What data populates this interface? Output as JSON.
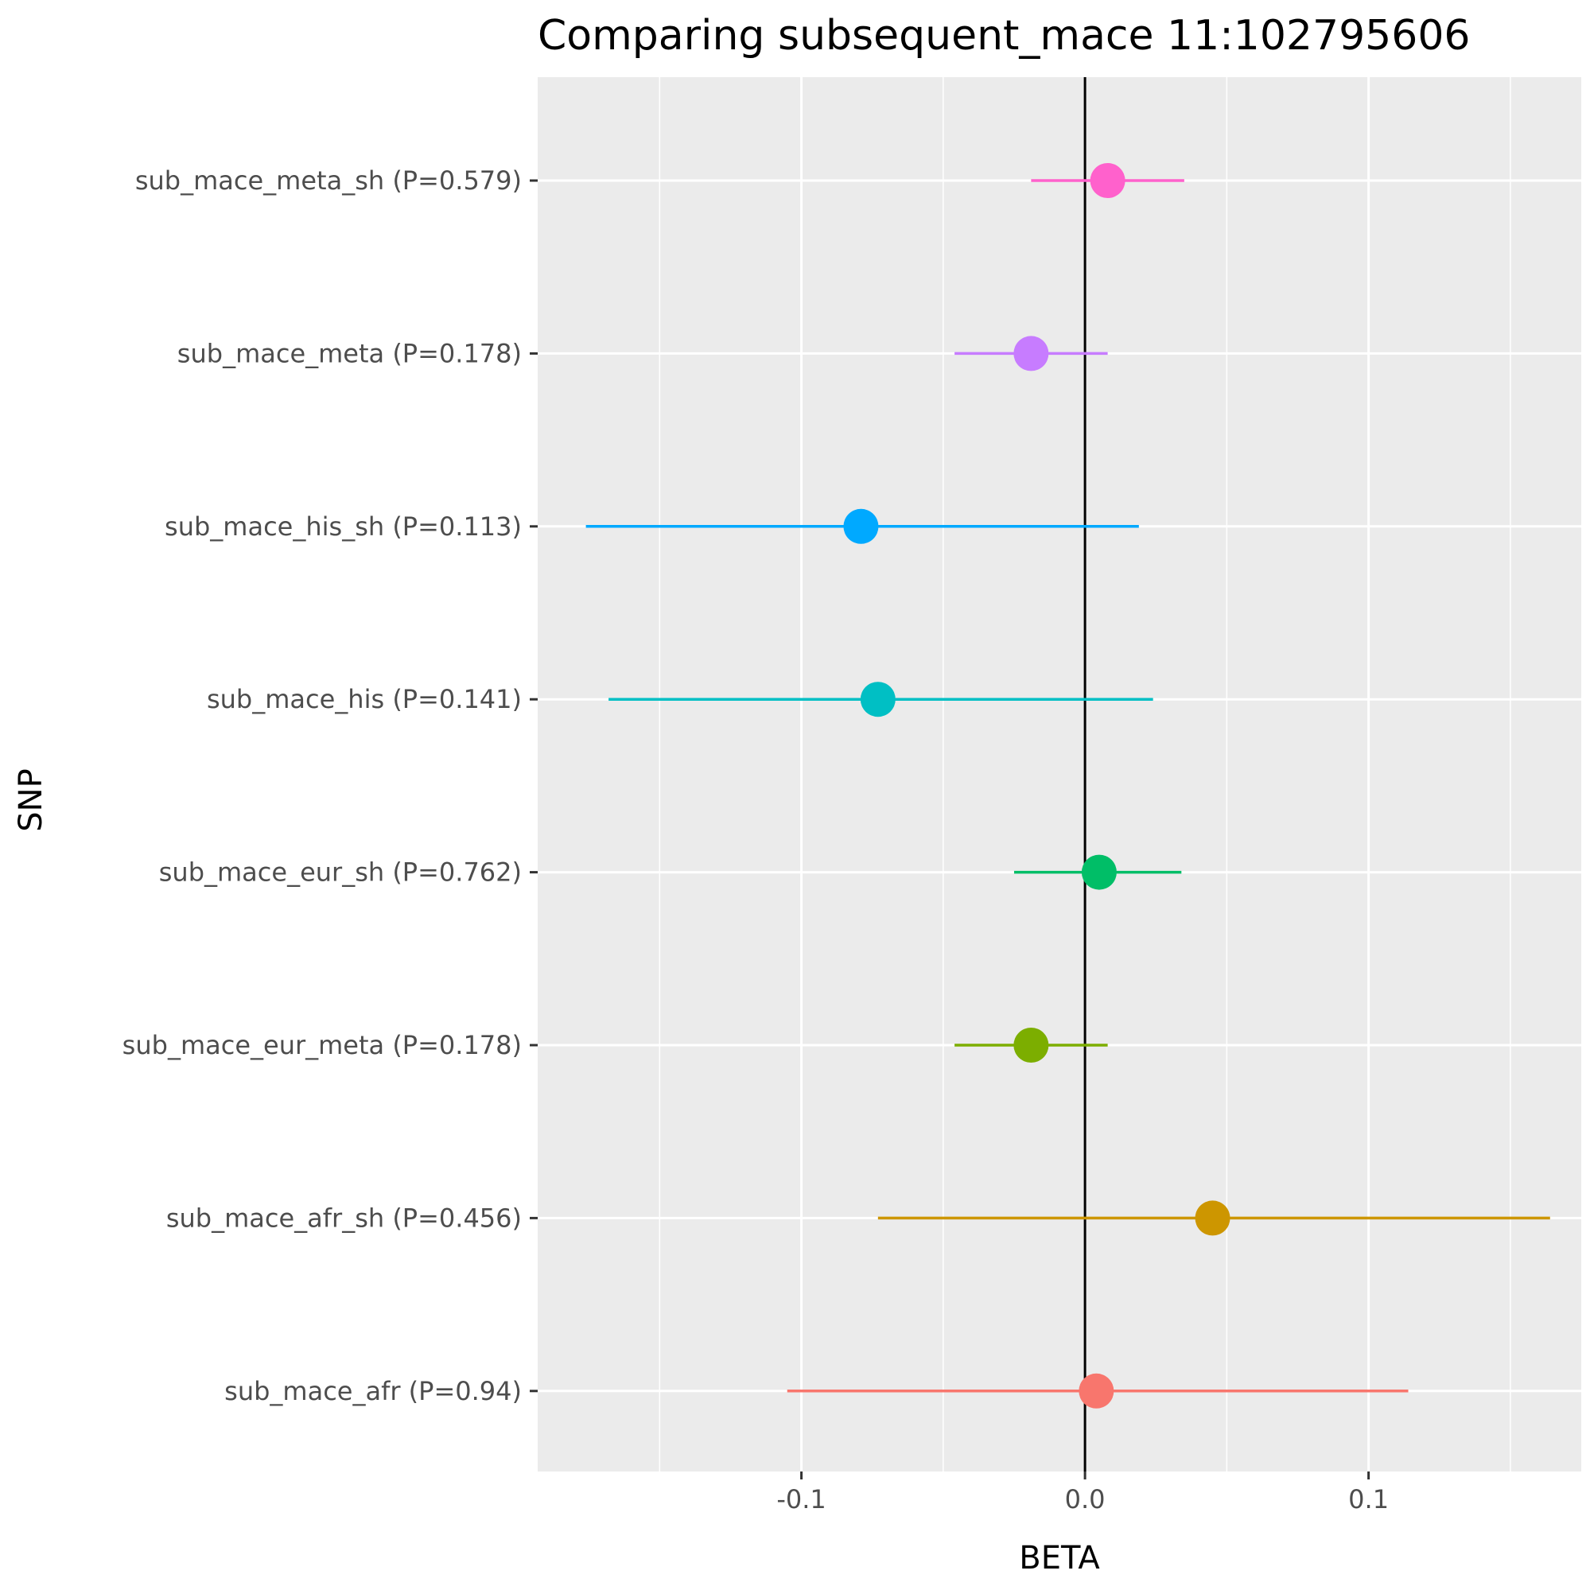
{
  "chart_data": {
    "type": "scatter",
    "subtype": "forest-plot",
    "title": "Comparing subsequent_mace 11:102795606",
    "xlabel": "BETA",
    "ylabel": "SNP",
    "xlim": [
      -0.193,
      0.175
    ],
    "x_ticks": [
      {
        "value": -0.1,
        "label": "-0.1"
      },
      {
        "value": 0.0,
        "label": "0.0"
      },
      {
        "value": 0.1,
        "label": "0.1"
      }
    ],
    "reference_line": 0,
    "grid": true,
    "legend": "none",
    "points": [
      {
        "label": "sub_mace_meta_sh (P=0.579)",
        "beta": 0.008,
        "lower": -0.019,
        "upper": 0.035,
        "color": "#FF61CC"
      },
      {
        "label": "sub_mace_meta (P=0.178)",
        "beta": -0.019,
        "lower": -0.046,
        "upper": 0.008,
        "color": "#C77CFF"
      },
      {
        "label": "sub_mace_his_sh (P=0.113)",
        "beta": -0.079,
        "lower": -0.176,
        "upper": 0.019,
        "color": "#00A9FF"
      },
      {
        "label": "sub_mace_his (P=0.141)",
        "beta": -0.073,
        "lower": -0.168,
        "upper": 0.024,
        "color": "#00BFC4"
      },
      {
        "label": "sub_mace_eur_sh (P=0.762)",
        "beta": 0.005,
        "lower": -0.025,
        "upper": 0.034,
        "color": "#00BE67"
      },
      {
        "label": "sub_mace_eur_meta (P=0.178)",
        "beta": -0.019,
        "lower": -0.046,
        "upper": 0.008,
        "color": "#7CAE00"
      },
      {
        "label": "sub_mace_afr_sh (P=0.456)",
        "beta": 0.045,
        "lower": -0.073,
        "upper": 0.164,
        "color": "#CD9600"
      },
      {
        "label": "sub_mace_afr (P=0.94)",
        "beta": 0.004,
        "lower": -0.105,
        "upper": 0.114,
        "color": "#F8766D"
      }
    ]
  }
}
